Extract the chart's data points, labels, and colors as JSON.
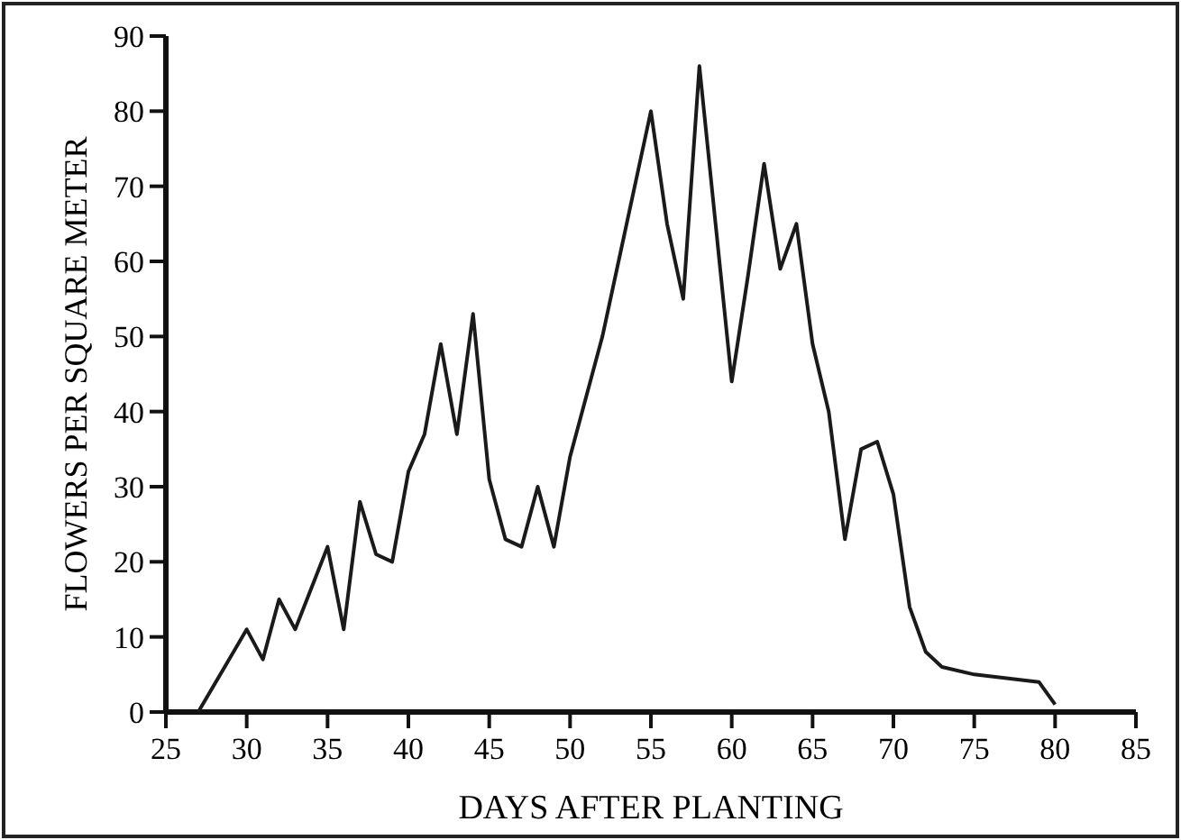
{
  "chart_data": {
    "type": "line",
    "xlabel": "DAYS AFTER PLANTING",
    "ylabel": "FLOWERS PER SQUARE METER",
    "x": [
      27,
      30,
      31,
      32,
      33,
      35,
      36,
      37,
      38,
      39,
      40,
      41,
      42,
      43,
      44,
      45,
      46,
      47,
      48,
      49,
      50,
      51,
      52,
      53,
      54,
      55,
      56,
      57,
      58,
      59,
      60,
      61,
      62,
      63,
      64,
      65,
      66,
      67,
      68,
      69,
      70,
      71,
      72,
      73,
      75,
      77,
      79,
      80
    ],
    "series": [
      {
        "color": "#1a1a1a",
        "values": [
          0,
          11,
          7,
          15,
          11,
          22,
          11,
          28,
          21,
          20,
          32,
          37,
          49,
          37,
          53,
          31,
          23,
          22,
          30,
          22,
          34,
          42,
          50,
          60,
          70,
          80,
          65,
          55,
          86,
          65,
          44,
          58,
          73,
          59,
          65,
          49,
          40,
          23,
          35,
          36,
          29,
          14,
          8,
          6,
          5,
          4.5,
          4,
          1
        ]
      }
    ],
    "xlim": [
      25,
      85
    ],
    "xticks": [
      25,
      30,
      35,
      40,
      45,
      50,
      55,
      60,
      65,
      70,
      75,
      80,
      85
    ],
    "ylim": [
      0,
      90
    ],
    "yticks": [
      0,
      10,
      20,
      30,
      40,
      50,
      60,
      70,
      80,
      90
    ],
    "grid": false,
    "marker": "none",
    "line_style": "solid"
  }
}
